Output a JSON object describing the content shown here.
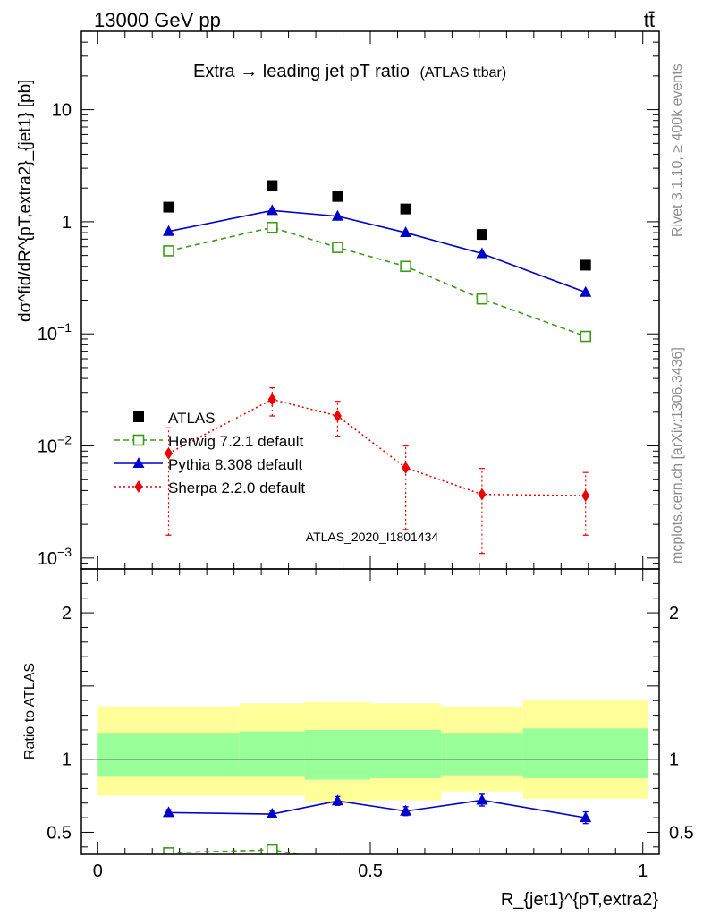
{
  "header": {
    "left": "13000 GeV pp",
    "right": "tt̄"
  },
  "side_labels": {
    "rivet": "Rivet 3.1.10, ≥ 400k events",
    "mcplots": "mcplots.cern.ch [arXiv:1306.3436]"
  },
  "watermark": "ATLAS_2020_I1801434",
  "colors": {
    "atlas": "#000000",
    "herwig": "#3a9a1a",
    "pythia": "#0000cc",
    "sherpa": "#ee0000",
    "band_inner": "#99ff99",
    "band_outer": "#ffff99"
  },
  "chart_data": [
    {
      "type": "line",
      "title": "Extra → leading jet pT ratio",
      "title_suffix": "(ATLAS ttbar)",
      "ylabel": "dσ^fid/dR^{pT,extra2}_{jet1} [pb]",
      "yscale": "log",
      "ylim": [
        0.0008,
        50
      ],
      "xlim": [
        -0.03,
        1.03
      ],
      "y_ticks": [
        {
          "v": 10,
          "label": "10"
        },
        {
          "v": 1,
          "label": "1"
        },
        {
          "v": 0.1,
          "base": "10",
          "exp": "−1"
        },
        {
          "v": 0.01,
          "base": "10",
          "exp": "−2"
        },
        {
          "v": 0.001,
          "base": "10",
          "exp": "−3"
        }
      ],
      "legend_position": "lower-left",
      "x": [
        0.13,
        0.32,
        0.44,
        0.565,
        0.705,
        0.895
      ],
      "series": [
        {
          "name": "ATLAS",
          "marker": "square-filled",
          "line": "none",
          "values": [
            1.35,
            2.1,
            1.68,
            1.3,
            0.77,
            0.41
          ]
        },
        {
          "name": "Herwig 7.2.1 default",
          "marker": "square-open",
          "line": "dashed",
          "values": [
            0.55,
            0.89,
            0.59,
            0.4,
            0.205,
            0.095
          ]
        },
        {
          "name": "Pythia 8.308 default",
          "marker": "triangle-filled",
          "line": "solid",
          "values": [
            0.82,
            1.26,
            1.12,
            0.8,
            0.52,
            0.235
          ]
        },
        {
          "name": "Sherpa 2.2.0 default",
          "marker": "diamond-filled",
          "line": "dotted",
          "values": [
            0.0086,
            0.026,
            0.0185,
            0.0064,
            0.0037,
            0.0036
          ],
          "err_low": [
            0.0016,
            0.0185,
            0.0122,
            0.0018,
            0.0011,
            0.0016
          ],
          "err_high": [
            0.0145,
            0.033,
            0.025,
            0.01,
            0.0063,
            0.0058
          ]
        }
      ]
    },
    {
      "type": "line",
      "ylabel": "Ratio to ATLAS",
      "xlabel": "R_{jet1}^{pT,extra2}",
      "ylim": [
        0.35,
        2.3
      ],
      "xlim": [
        -0.03,
        1.03
      ],
      "y_ticks": [
        0.5,
        1,
        2
      ],
      "x_ticks": [
        {
          "v": 0,
          "label": "0"
        },
        {
          "v": 0.5,
          "label": "0.5"
        },
        {
          "v": 1,
          "label": "1"
        }
      ],
      "bands": [
        {
          "x0": 0.0,
          "x1": 0.26,
          "outer_lo": 0.75,
          "outer_hi": 1.36,
          "inner_lo": 0.88,
          "inner_hi": 1.18
        },
        {
          "x0": 0.26,
          "x1": 0.38,
          "outer_lo": 0.75,
          "outer_hi": 1.38,
          "inner_lo": 0.88,
          "inner_hi": 1.19
        },
        {
          "x0": 0.38,
          "x1": 0.5,
          "outer_lo": 0.71,
          "outer_hi": 1.39,
          "inner_lo": 0.86,
          "inner_hi": 1.2
        },
        {
          "x0": 0.5,
          "x1": 0.63,
          "outer_lo": 0.72,
          "outer_hi": 1.38,
          "inner_lo": 0.87,
          "inner_hi": 1.2
        },
        {
          "x0": 0.63,
          "x1": 0.78,
          "outer_lo": 0.78,
          "outer_hi": 1.36,
          "inner_lo": 0.89,
          "inner_hi": 1.18
        },
        {
          "x0": 0.78,
          "x1": 1.01,
          "outer_lo": 0.73,
          "outer_hi": 1.4,
          "inner_lo": 0.87,
          "inner_hi": 1.21
        }
      ],
      "reference": 1,
      "series": [
        {
          "name": "Pythia 8.308 default",
          "marker": "triangle-filled",
          "line": "solid",
          "x": [
            0.13,
            0.32,
            0.44,
            0.565,
            0.705,
            0.895
          ],
          "values": [
            0.635,
            0.625,
            0.715,
            0.645,
            0.72,
            0.6
          ],
          "err": [
            0.02,
            0.025,
            0.03,
            0.03,
            0.04,
            0.04
          ]
        },
        {
          "name": "Herwig 7.2.1 default",
          "marker": "square-open",
          "line": "dashed",
          "x": [
            0.13,
            0.32,
            0.38
          ],
          "values": [
            0.36,
            0.38,
            0.34
          ],
          "markers_shown": [
            true,
            true,
            false
          ]
        }
      ]
    }
  ]
}
